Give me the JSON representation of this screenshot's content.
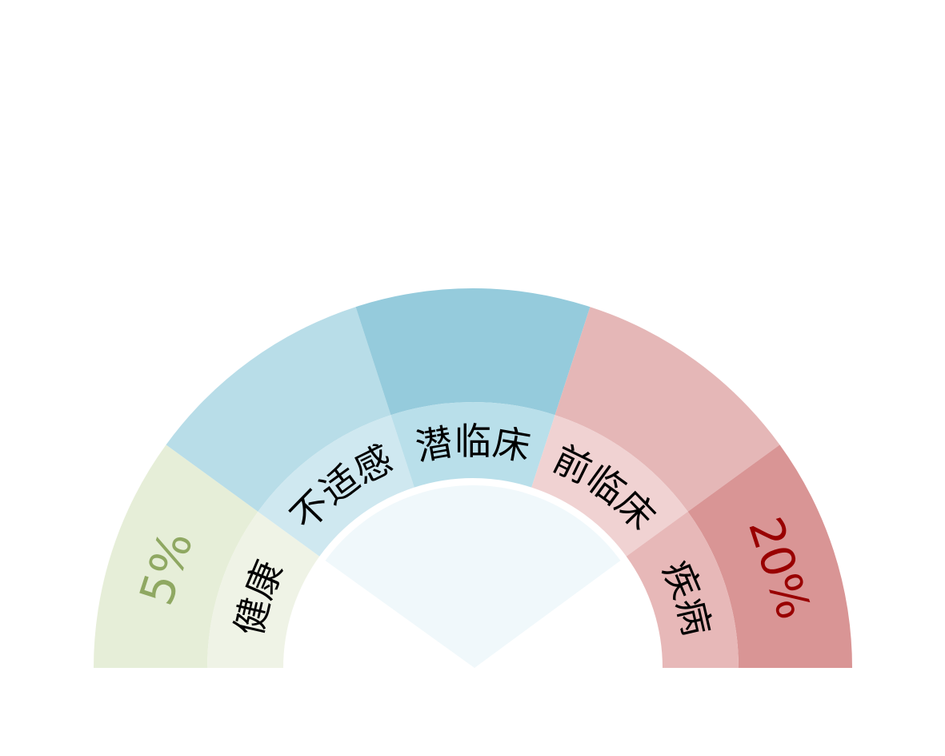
{
  "gauge": {
    "segments": [
      {
        "label": "健康",
        "start_deg": 180,
        "end_deg": 144,
        "outer_color": "#e6eed8",
        "inner_color": "#eff3e6"
      },
      {
        "label": "不适感",
        "start_deg": 144,
        "end_deg": 108,
        "outer_color": "#b8dde8",
        "inner_color": "#cfe8f0"
      },
      {
        "label": "潜临床",
        "start_deg": 108,
        "end_deg": 72,
        "outer_color": "#95cbdc",
        "inner_color": "#b9dfea"
      },
      {
        "label": "前临床",
        "start_deg": 72,
        "end_deg": 36,
        "outer_color": "#e5b7b7",
        "inner_color": "#f0d2d2"
      },
      {
        "label": "疾病",
        "start_deg": 36,
        "end_deg": 0,
        "outer_color": "#d99595",
        "inner_color": "#e7b8b8"
      }
    ],
    "min_label": {
      "text": "5%",
      "color": "#8fa862"
    },
    "max_label": {
      "text": "20%",
      "color": "#990000"
    },
    "center_fan_color": "#f0f8fb"
  }
}
